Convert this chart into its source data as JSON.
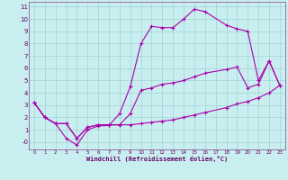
{
  "xlabel": "Windchill (Refroidissement éolien,°C)",
  "background_color": "#c8eef0",
  "grid_color": "#99cccc",
  "line_color": "#aa00aa",
  "spine_color": "#884488",
  "tick_color": "#660066",
  "xlim": [
    -0.5,
    23.5
  ],
  "ylim": [
    -0.6,
    11.4
  ],
  "xticks": [
    0,
    1,
    2,
    3,
    4,
    5,
    6,
    7,
    8,
    9,
    10,
    11,
    12,
    13,
    14,
    15,
    16,
    17,
    18,
    19,
    20,
    21,
    22,
    23
  ],
  "yticks": [
    0,
    1,
    2,
    3,
    4,
    5,
    6,
    7,
    8,
    9,
    10,
    11
  ],
  "ytick_labels": [
    "-0",
    "1",
    "2",
    "3",
    "4",
    "5",
    "6",
    "7",
    "8",
    "9",
    "10",
    "11"
  ],
  "line1_x": [
    0,
    1,
    2,
    3,
    4,
    5,
    6,
    7,
    8,
    9,
    10,
    11,
    12,
    13,
    14,
    15,
    16,
    18,
    19,
    20,
    21,
    22,
    23
  ],
  "line1_y": [
    3.2,
    2.0,
    1.5,
    0.3,
    -0.25,
    1.0,
    1.3,
    1.35,
    2.3,
    4.5,
    8.0,
    9.4,
    9.3,
    9.3,
    10.0,
    10.8,
    10.6,
    9.5,
    9.2,
    9.0,
    5.0,
    6.6,
    4.6
  ],
  "line2_x": [
    0,
    1,
    2,
    3,
    4,
    5,
    6,
    7,
    8,
    9,
    10,
    11,
    12,
    13,
    14,
    15,
    16,
    18,
    19,
    20,
    21,
    22,
    23
  ],
  "line2_y": [
    3.2,
    2.0,
    1.5,
    1.5,
    0.3,
    1.2,
    1.4,
    1.4,
    1.4,
    2.3,
    4.2,
    4.4,
    4.7,
    4.8,
    5.0,
    5.3,
    5.6,
    5.9,
    6.1,
    4.4,
    4.7,
    6.6,
    4.6
  ],
  "line3_x": [
    0,
    1,
    2,
    3,
    4,
    5,
    6,
    7,
    8,
    9,
    10,
    11,
    12,
    13,
    14,
    15,
    16,
    18,
    19,
    20,
    21,
    22,
    23
  ],
  "line3_y": [
    3.2,
    2.0,
    1.5,
    1.5,
    0.3,
    1.2,
    1.4,
    1.4,
    1.4,
    1.4,
    1.5,
    1.6,
    1.7,
    1.8,
    2.0,
    2.2,
    2.4,
    2.8,
    3.1,
    3.3,
    3.6,
    4.0,
    4.6
  ]
}
